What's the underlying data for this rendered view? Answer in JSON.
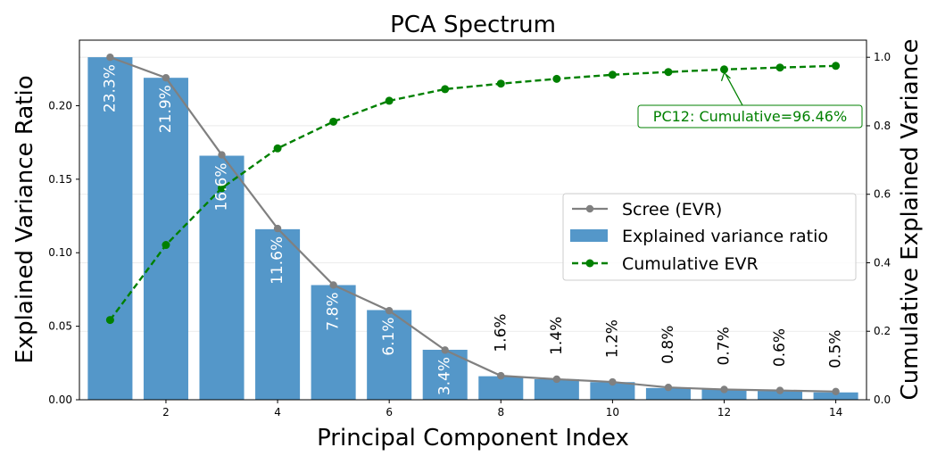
{
  "chart_data": {
    "type": "bar",
    "title": "PCA Spectrum",
    "xlabel": "Principal Component Index",
    "ylabel": "Explained Variance Ratio",
    "y2label": "Cumulative Explained Variance",
    "x": [
      1,
      2,
      3,
      4,
      5,
      6,
      7,
      8,
      9,
      10,
      11,
      12,
      13,
      14
    ],
    "xlim": [
      0.45,
      14.55
    ],
    "ylim": [
      0,
      0.2446
    ],
    "y2lim": [
      0,
      1.05
    ],
    "xticks": [
      2,
      4,
      6,
      8,
      10,
      12,
      14
    ],
    "yticks": [
      0.0,
      0.05,
      0.1,
      0.15,
      0.2
    ],
    "ytick_labels": [
      "0.00",
      "0.05",
      "0.10",
      "0.15",
      "0.20"
    ],
    "y2ticks": [
      0.0,
      0.2,
      0.4,
      0.6,
      0.8,
      1.0
    ],
    "y2tick_labels": [
      "0.0",
      "0.2",
      "0.4",
      "0.6",
      "0.8",
      "1.0"
    ],
    "grid": "horizontal-light",
    "series": [
      {
        "name": "Explained variance ratio",
        "kind": "bar",
        "color": "#5497c9",
        "values": [
          0.233,
          0.219,
          0.166,
          0.116,
          0.078,
          0.061,
          0.034,
          0.016,
          0.014,
          0.012,
          0.008,
          0.007,
          0.006,
          0.005
        ],
        "labels": [
          "23.3%",
          "21.9%",
          "16.6%",
          "11.6%",
          "7.8%",
          "6.1%",
          "3.4%",
          "1.6%",
          "1.4%",
          "1.2%",
          "0.8%",
          "0.7%",
          "0.6%",
          "0.5%"
        ]
      },
      {
        "name": "Scree (EVR)",
        "kind": "line",
        "axis": "right",
        "color": "#808080",
        "values": [
          1.0,
          0.94,
          0.715,
          0.5,
          0.335,
          0.26,
          0.145,
          0.07,
          0.06,
          0.052,
          0.036,
          0.03,
          0.027,
          0.024
        ]
      },
      {
        "name": "Cumulative EVR",
        "kind": "line-dashed",
        "axis": "right",
        "color": "#008000",
        "values": [
          0.233,
          0.452,
          0.618,
          0.734,
          0.812,
          0.873,
          0.907,
          0.923,
          0.937,
          0.949,
          0.957,
          0.9646,
          0.97,
          0.975
        ]
      }
    ],
    "legend": {
      "position": "center-right",
      "entries": [
        "Scree (EVR)",
        "Explained variance ratio",
        "Cumulative EVR"
      ]
    },
    "annotation": {
      "text": "PC12: Cumulative=96.46%",
      "x": 12,
      "y": 0.9646
    }
  }
}
